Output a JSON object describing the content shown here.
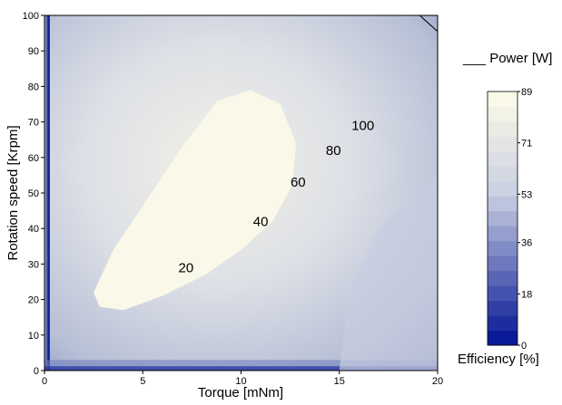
{
  "chart_data": {
    "type": "contour",
    "xlabel": "Torque [mNm]",
    "ylabel": "Rotation speed [Krpm]",
    "xlim": [
      0,
      20
    ],
    "ylim": [
      0,
      100
    ],
    "x_ticks": [
      0,
      5,
      10,
      15,
      20
    ],
    "y_ticks": [
      0,
      10,
      20,
      30,
      40,
      50,
      60,
      70,
      80,
      90,
      100
    ],
    "grid": false,
    "filled_contours": {
      "name": "Efficiency [%]",
      "range": [
        0,
        89
      ],
      "colorbar_ticks": [
        0,
        18,
        36,
        53,
        71,
        89
      ],
      "levels": 17,
      "low_color": "#0a1a96",
      "high_color": "#faf8e8",
      "peak_region": {
        "torque": 9,
        "speed": 50,
        "efficiency_min": 85
      }
    },
    "line_contours": {
      "name": "Power [W]",
      "legend_text": "___ Power [W]",
      "levels": [
        20,
        40,
        60,
        80,
        100
      ],
      "labels": [
        {
          "text": "20",
          "torque": 7.2,
          "speed": 29
        },
        {
          "text": "40",
          "torque": 11,
          "speed": 42
        },
        {
          "text": "60",
          "torque": 12.9,
          "speed": 53
        },
        {
          "text": "80",
          "torque": 14.7,
          "speed": 62
        },
        {
          "text": "100",
          "torque": 16.2,
          "speed": 69
        }
      ]
    },
    "legend_position": "right"
  }
}
